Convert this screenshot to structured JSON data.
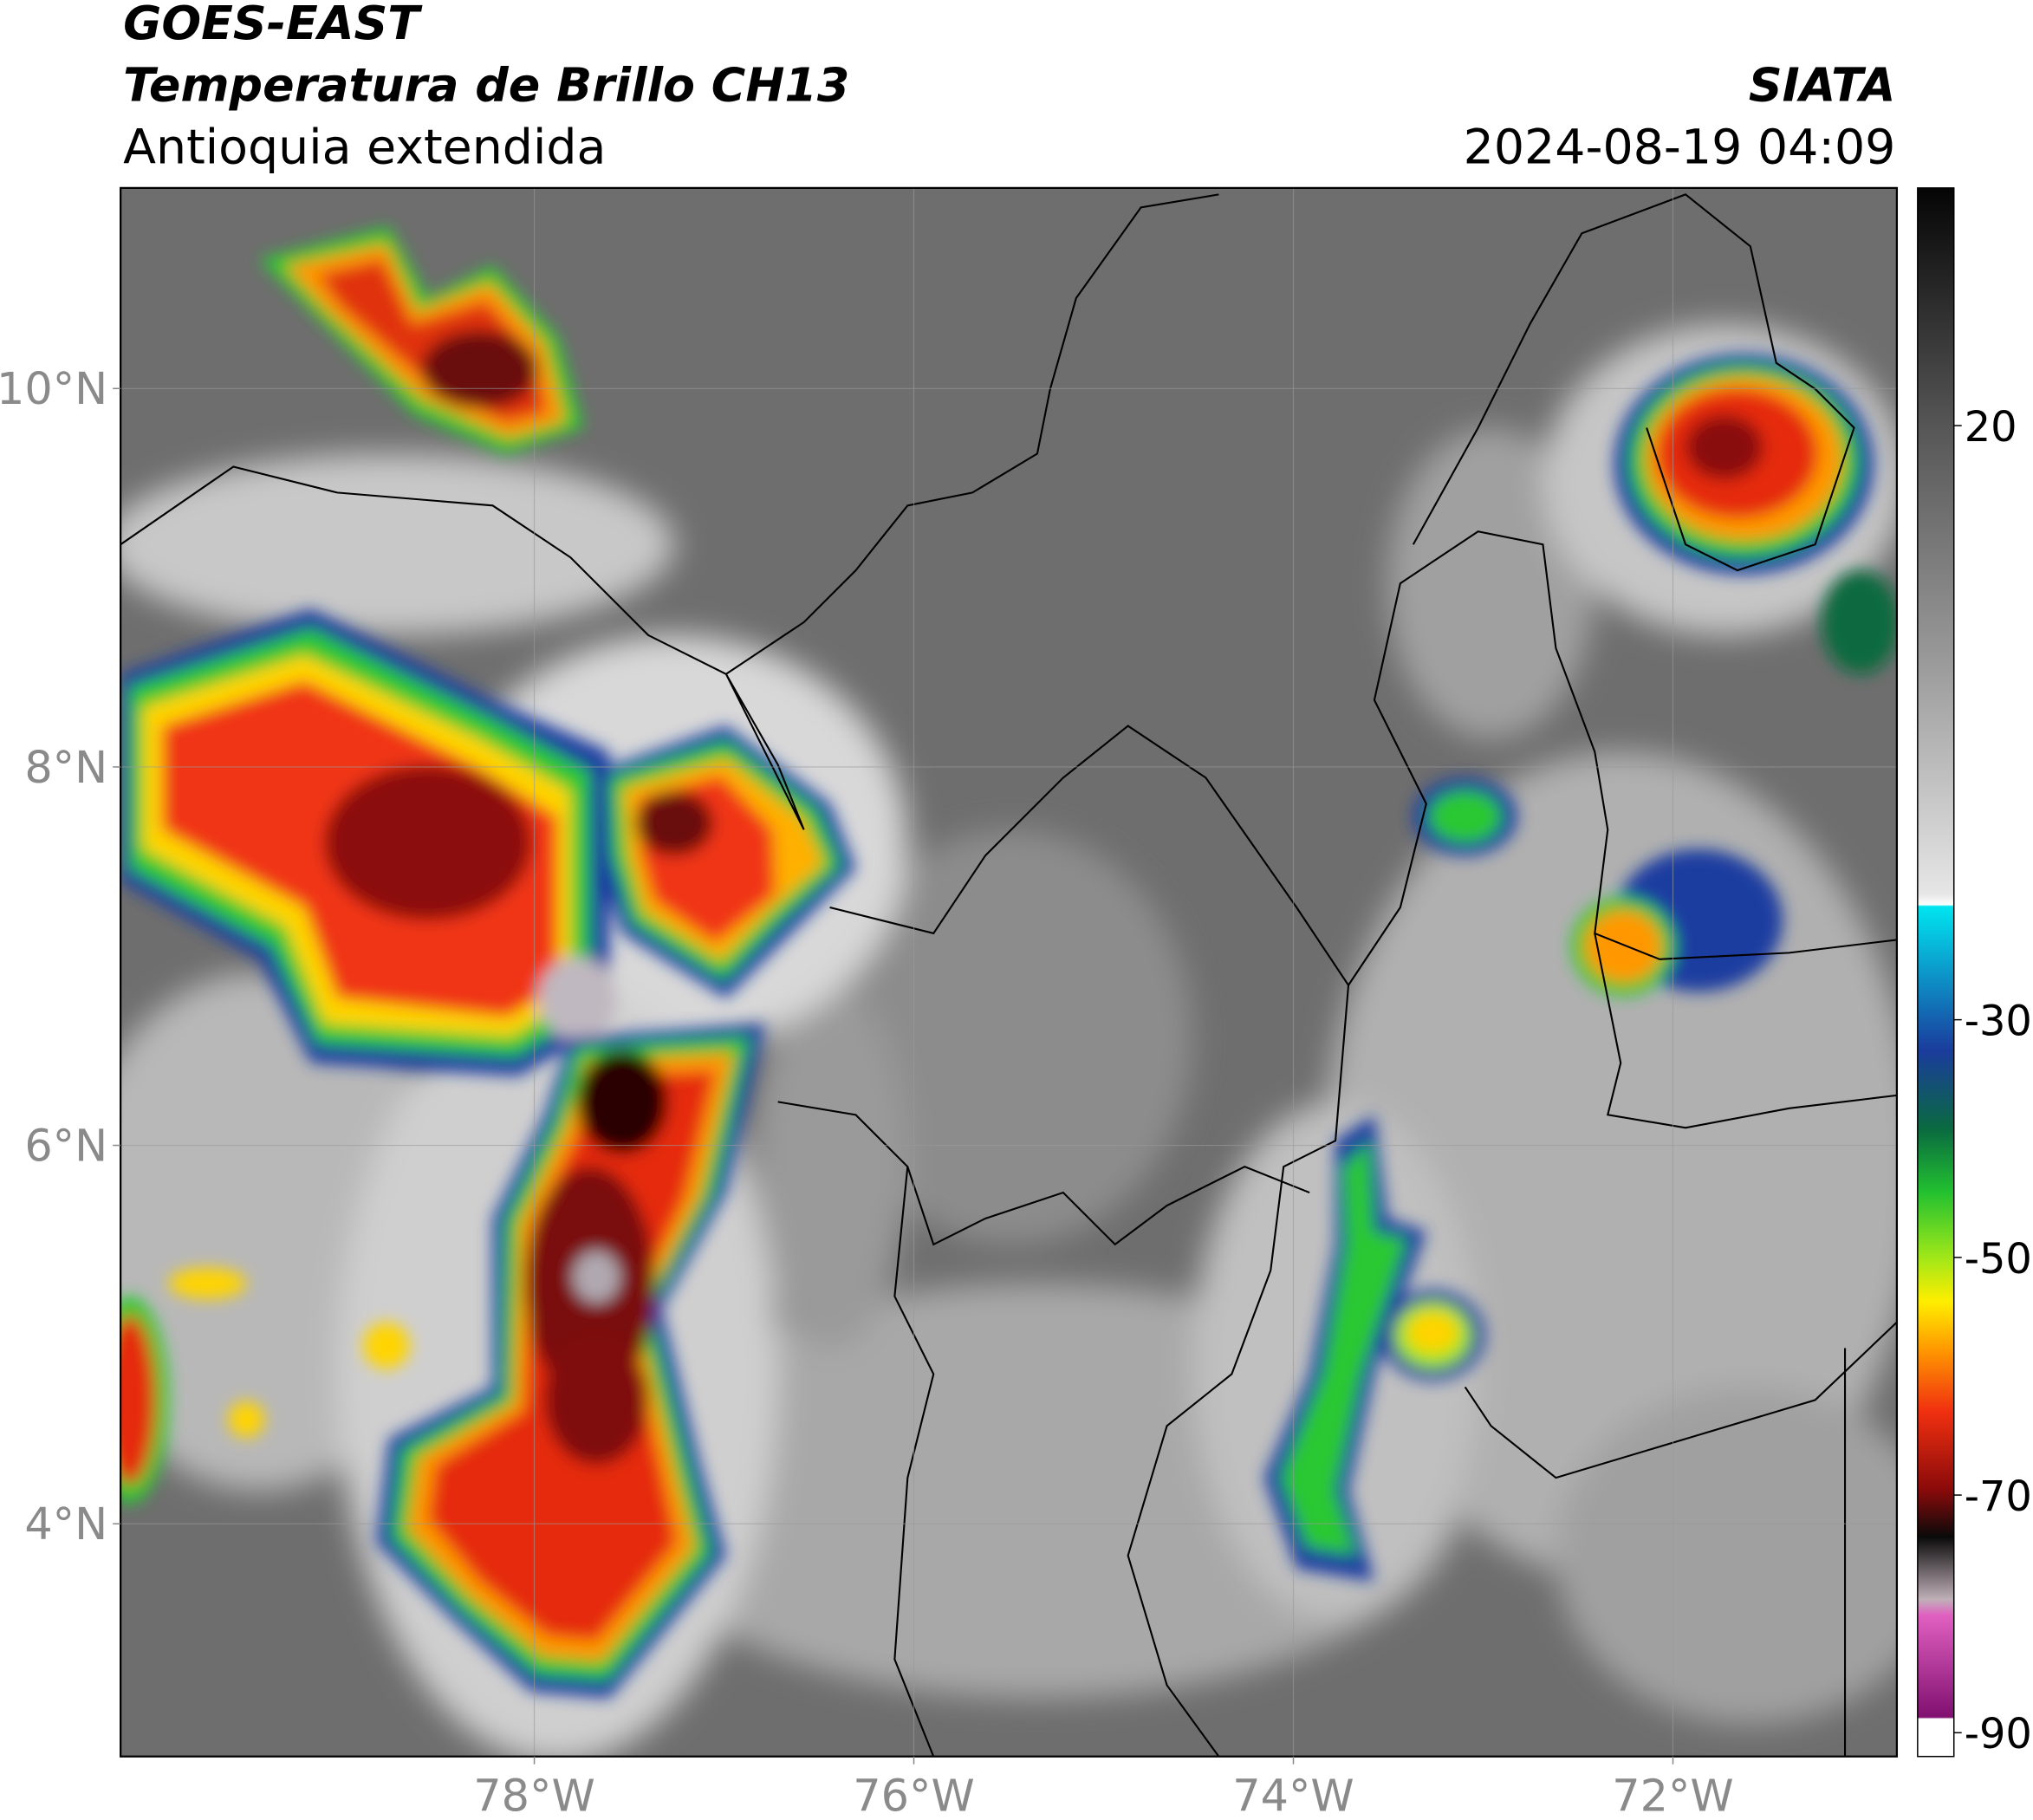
{
  "header": {
    "satellite": "GOES-EAST",
    "product": "Temperatura de Brillo CH13",
    "region": "Antioquia extendida",
    "source": "SIATA",
    "datetime": "2024-08-19 04:09"
  },
  "map": {
    "xlim": [
      -80.18,
      -70.82
    ],
    "ylim": [
      2.77,
      11.06
    ],
    "xticks": [
      {
        "value": -78,
        "label": "78°W"
      },
      {
        "value": -76,
        "label": "76°W"
      },
      {
        "value": -74,
        "label": "74°W"
      },
      {
        "value": -72,
        "label": "72°W"
      }
    ],
    "yticks": [
      {
        "value": 10,
        "label": "10°N"
      },
      {
        "value": 8,
        "label": "8°N"
      },
      {
        "value": 6,
        "label": "6°N"
      },
      {
        "value": 4,
        "label": "4°N"
      }
    ],
    "grid": true
  },
  "colorbar": {
    "lim": [
      -92,
      40
    ],
    "ticks": [
      20,
      -30,
      -50,
      -70,
      -90
    ]
  }
}
